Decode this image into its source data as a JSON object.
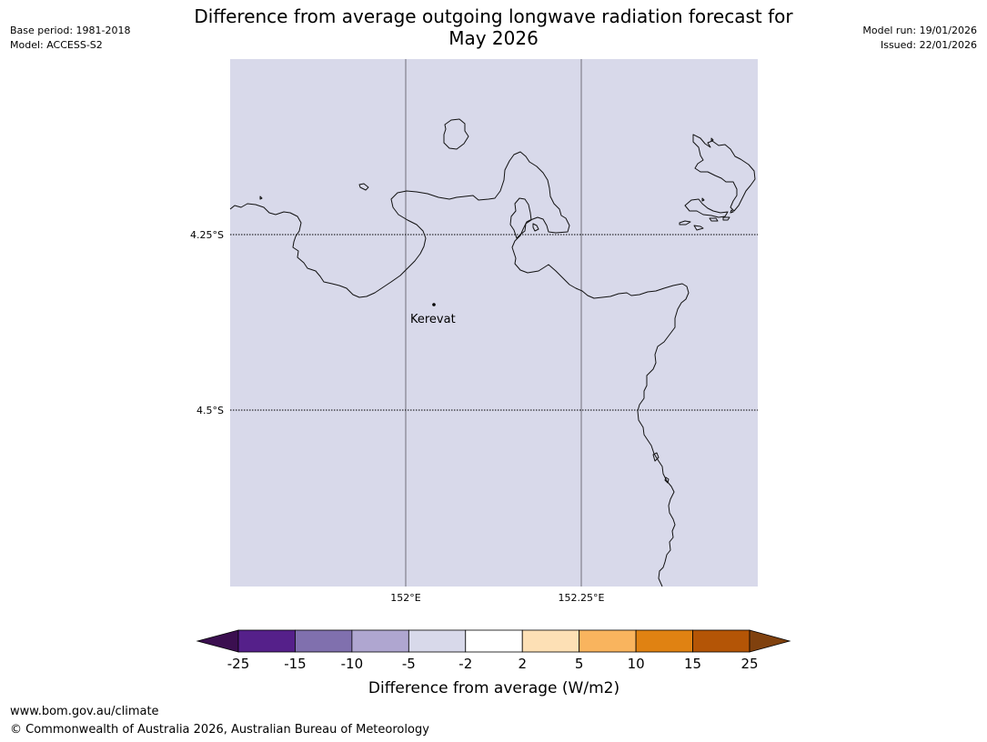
{
  "header": {
    "title_line1": "Difference from average outgoing longwave radiation forecast for",
    "title_line2": "May 2026",
    "base_period": "Base period: 1981-2018",
    "model": "Model: ACCESS-S2",
    "model_run": "Model run: 19/01/2026",
    "issued": "Issued: 22/01/2026"
  },
  "map": {
    "background_color": "#d8d9ea",
    "lat_labels": [
      "4.25°S",
      "4.5°S"
    ],
    "lon_labels": [
      "152°E",
      "152.25°E"
    ],
    "place": {
      "name": "Kerevat"
    }
  },
  "colorbar": {
    "ticks": [
      "-25",
      "-15",
      "-10",
      "-5",
      "-2",
      "2",
      "5",
      "10",
      "15",
      "25"
    ],
    "colors": [
      "#3b0f50",
      "#55208a",
      "#8070ae",
      "#afa6d0",
      "#d8d9ea",
      "#ffffff",
      "#fde0b5",
      "#f9b45e",
      "#e08212",
      "#b45506",
      "#80410e"
    ],
    "label": "Difference from average (W/m2)"
  },
  "footer": {
    "website": "www.bom.gov.au/climate",
    "copyright": "© Commonwealth of Australia 2026, Australian Bureau of Meteorology"
  }
}
